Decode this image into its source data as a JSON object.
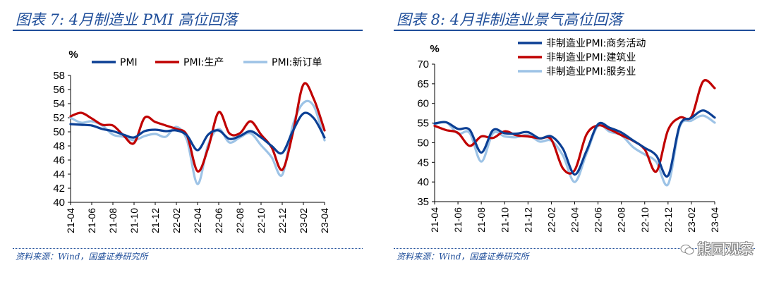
{
  "charts": [
    {
      "title": "图表 7:  4月制造业 PMI 高位回落",
      "source": "资料来源：Wind，国盛证券研究所",
      "chart_data": {
        "type": "line",
        "ylabel": "%",
        "xlabel": "",
        "ylim": [
          40,
          58
        ],
        "yticks": [
          40,
          42,
          44,
          46,
          48,
          50,
          52,
          54,
          56,
          58
        ],
        "x": [
          "21-04",
          "21-05",
          "21-06",
          "21-07",
          "21-08",
          "21-09",
          "21-10",
          "21-11",
          "21-12",
          "22-01",
          "22-02",
          "22-03",
          "22-04",
          "22-05",
          "22-06",
          "22-07",
          "22-08",
          "22-09",
          "22-10",
          "22-11",
          "22-12",
          "23-01",
          "23-02",
          "23-03",
          "23-04"
        ],
        "xtick_labels": [
          "21-04",
          "21-06",
          "21-08",
          "21-10",
          "21-12",
          "22-02",
          "22-04",
          "22-06",
          "22-08",
          "22-10",
          "22-12",
          "23-02",
          "23-04"
        ],
        "legend_position": "top",
        "series": [
          {
            "name": "PMI",
            "color": "#0b3f94",
            "values": [
              51.1,
              51.0,
              50.9,
              50.4,
              50.1,
              49.6,
              49.2,
              50.1,
              50.3,
              50.1,
              50.2,
              49.5,
              47.4,
              49.6,
              50.2,
              49.0,
              49.4,
              50.1,
              49.2,
              48.0,
              47.0,
              50.1,
              52.6,
              51.9,
              49.2
            ]
          },
          {
            "name": "PMI:生产",
            "color": "#c00000",
            "values": [
              52.2,
              52.7,
              51.9,
              51.0,
              50.9,
              49.5,
              48.4,
              52.0,
              51.4,
              50.9,
              50.4,
              49.5,
              44.4,
              47.7,
              52.8,
              49.8,
              49.8,
              51.5,
              49.6,
              47.8,
              44.6,
              49.8,
              56.7,
              54.6,
              50.2
            ]
          },
          {
            "name": "PMI:新订单",
            "color": "#9dc3e6",
            "values": [
              52.0,
              51.3,
              51.5,
              50.9,
              49.6,
              49.3,
              48.8,
              49.4,
              49.7,
              49.3,
              50.7,
              48.8,
              42.6,
              48.2,
              50.4,
              48.5,
              49.2,
              49.8,
              48.1,
              46.4,
              43.9,
              50.9,
              54.1,
              53.6,
              48.8
            ]
          }
        ]
      }
    },
    {
      "title": "图表 8:  4月非制造业景气高位回落",
      "source": "资料来源：Wind，国盛证券研究所",
      "chart_data": {
        "type": "line",
        "ylabel": "%",
        "xlabel": "",
        "ylim": [
          35,
          70
        ],
        "yticks": [
          35,
          40,
          45,
          50,
          55,
          60,
          65,
          70
        ],
        "x": [
          "21-04",
          "21-05",
          "21-06",
          "21-07",
          "21-08",
          "21-09",
          "21-10",
          "21-11",
          "21-12",
          "22-01",
          "22-02",
          "22-03",
          "22-04",
          "22-05",
          "22-06",
          "22-07",
          "22-08",
          "22-09",
          "22-10",
          "22-11",
          "22-12",
          "23-01",
          "23-02",
          "23-03",
          "23-04"
        ],
        "xtick_labels": [
          "21-04",
          "21-06",
          "21-08",
          "21-10",
          "21-12",
          "22-02",
          "22-04",
          "22-06",
          "22-08",
          "22-10",
          "22-12",
          "23-02",
          "23-04"
        ],
        "legend_position": "top-right",
        "series": [
          {
            "name": "非制造业PMI:商务活动",
            "color": "#0b3f94",
            "values": [
              54.9,
              55.2,
              53.5,
              53.3,
              47.5,
              53.2,
              52.4,
              52.3,
              52.7,
              51.1,
              51.6,
              48.4,
              41.9,
              47.8,
              54.7,
              53.8,
              52.6,
              50.6,
              48.7,
              46.7,
              41.6,
              54.4,
              56.3,
              58.2,
              56.4
            ]
          },
          {
            "name": "非制造业PMI:建筑业",
            "color": "#c00000",
            "values": [
              54.3,
              53.2,
              52.5,
              49.2,
              51.6,
              51.2,
              52.9,
              51.9,
              51.6,
              51.1,
              50.8,
              43.4,
              43.0,
              52.0,
              54.4,
              53.4,
              51.9,
              50.5,
              48.3,
              42.7,
              53.2,
              56.4,
              56.6,
              65.6,
              63.9
            ]
          },
          {
            "name": "非制造业PMI:服务业",
            "color": "#9dc3e6",
            "values": [
              54.7,
              55.2,
              52.3,
              52.5,
              45.2,
              52.4,
              51.6,
              51.4,
              52.0,
              50.3,
              50.5,
              46.7,
              40.0,
              47.1,
              54.3,
              52.8,
              51.9,
              48.9,
              47.0,
              45.1,
              39.4,
              54.0,
              55.6,
              56.9,
              55.1
            ]
          }
        ]
      }
    }
  ],
  "watermark": "熊园观察"
}
